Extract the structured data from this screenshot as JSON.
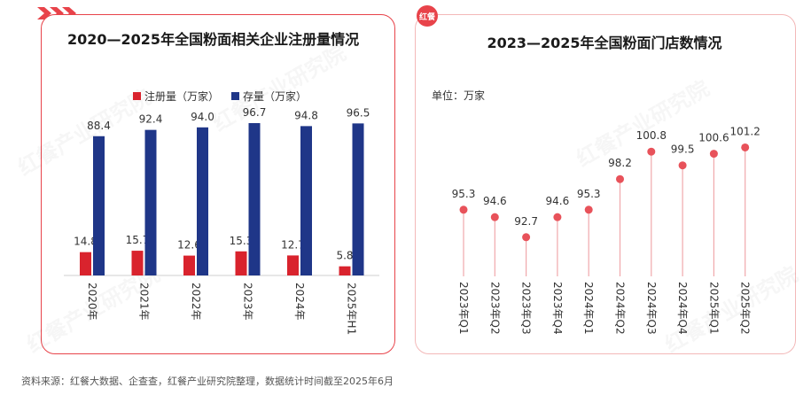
{
  "left": {
    "title": "2020—2025年全国粉面相关企业注册量情况",
    "legend": [
      "注册量（万家）",
      "存量（万家）"
    ]
  },
  "right": {
    "title": "2023—2025年全国粉面门店数情况",
    "unit": "单位：万家",
    "badge": "红餐"
  },
  "source": "资料来源：红餐大数据、企查查，红餐产业研究院整理，数据统计时间截至2025年6月",
  "watermark": "红餐产业研究院",
  "colors": {
    "registered": "#d9232d",
    "stock": "#1f3688",
    "lollipop": "#e8525a",
    "stem": "#f0a8ab",
    "accent": "#e8434a"
  },
  "chart_data": [
    {
      "type": "bar",
      "title": "2020—2025年全国粉面相关企业注册量情况",
      "categories": [
        "2020年",
        "2021年",
        "2022年",
        "2023年",
        "2024年",
        "2025年H1"
      ],
      "series": [
        {
          "name": "注册量（万家）",
          "values": [
            14.8,
            15.7,
            12.6,
            15.3,
            12.7,
            5.8
          ]
        },
        {
          "name": "存量（万家）",
          "values": [
            88.4,
            92.4,
            94.0,
            96.7,
            94.8,
            96.5
          ]
        }
      ],
      "value_labels": [
        [
          "14.8",
          "15.7",
          "12.6",
          "15.3",
          "12.7",
          "5.8"
        ],
        [
          "88.4",
          "92.4",
          "94.0",
          "96.7",
          "94.8",
          "96.5"
        ]
      ],
      "ylim": [
        0,
        100
      ],
      "legend_position": "top",
      "grid": false
    },
    {
      "type": "scatter",
      "style": "lollipop",
      "title": "2023—2025年全国粉面门店数情况",
      "categories": [
        "2023年Q1",
        "2023年Q2",
        "2023年Q3",
        "2023年Q4",
        "2024年Q1",
        "2024年Q2",
        "2024年Q3",
        "2024年Q4",
        "2025年Q1",
        "2025年Q2"
      ],
      "values": [
        95.3,
        94.6,
        92.7,
        94.6,
        95.3,
        98.2,
        100.8,
        99.5,
        100.6,
        101.2
      ],
      "value_labels": [
        "95.3",
        "94.6",
        "92.7",
        "94.6",
        "95.3",
        "98.2",
        "100.8",
        "99.5",
        "100.6",
        "101.2"
      ],
      "ylim": [
        82,
        103
      ],
      "grid": false
    }
  ]
}
